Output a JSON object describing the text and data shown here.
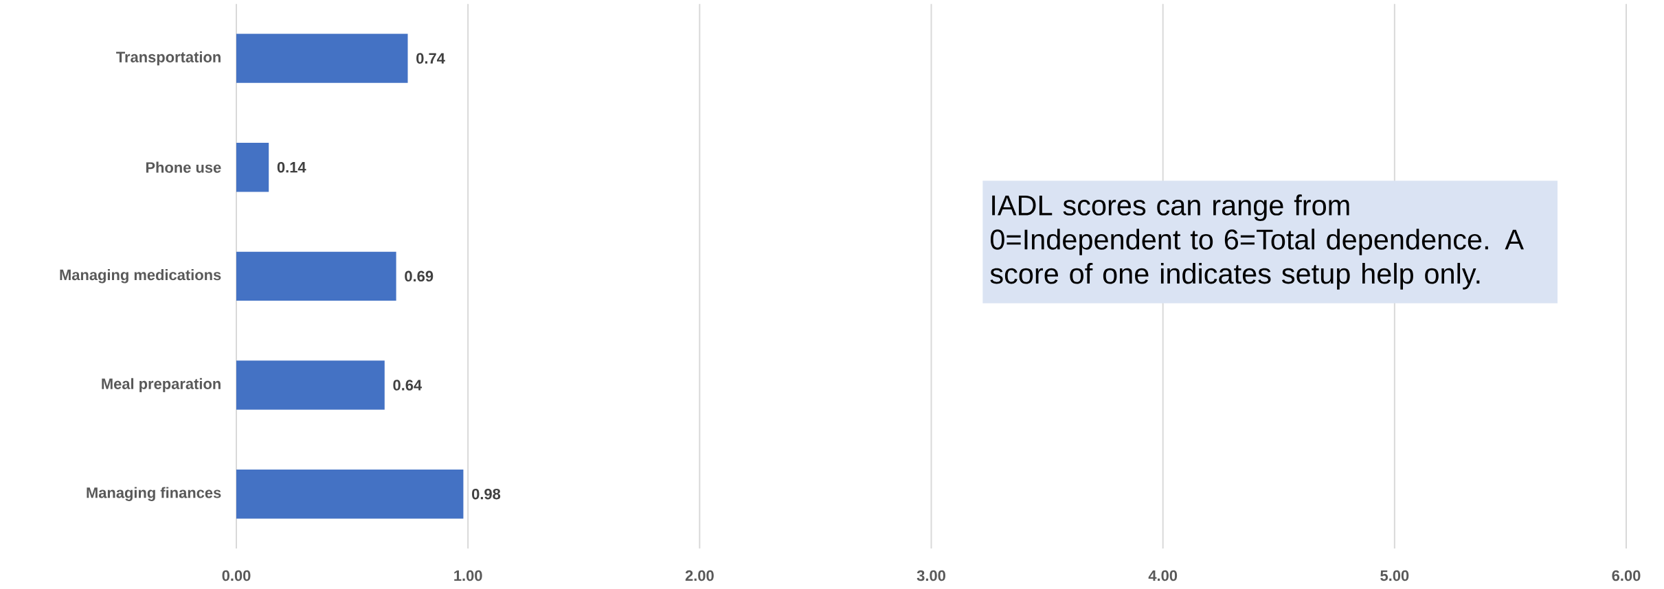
{
  "chart_data": {
    "type": "bar",
    "orientation": "horizontal",
    "categories": [
      "Transportation",
      "Phone use",
      "Managing medications",
      "Meal preparation",
      "Managing finances"
    ],
    "values": [
      0.74,
      0.14,
      0.69,
      0.64,
      0.98
    ],
    "color": "#4472c4",
    "xlim": [
      0,
      6
    ],
    "xticks": [
      {
        "value": 0,
        "label": "0.00"
      },
      {
        "value": 1,
        "label": "1.00"
      },
      {
        "value": 2,
        "label": "2.00"
      },
      {
        "value": 3,
        "label": "3.00"
      },
      {
        "value": 4,
        "label": "4.00"
      },
      {
        "value": 5,
        "label": "5.00"
      },
      {
        "value": 6,
        "label": "6.00"
      }
    ],
    "grid": "x",
    "data_labels": true,
    "annotations": [
      "IADL scores can range from 0=Independent to 6=Total dependence. A score of one indicates setup help only."
    ]
  }
}
